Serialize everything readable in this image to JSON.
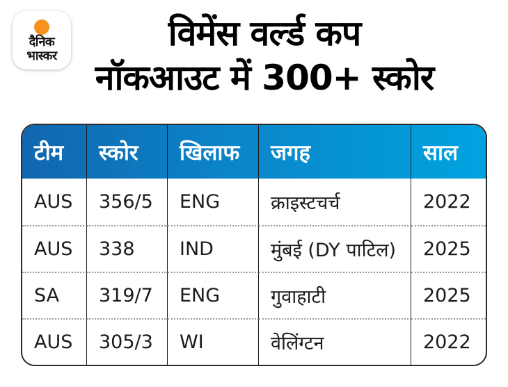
{
  "brand": {
    "logo_line1": "दैनिक",
    "logo_line2": "भास्कर",
    "logo_dot_color": "#f6921e"
  },
  "title": {
    "line1": "विमेंस वर्ल्ड कप",
    "line2": "नॉकआउट में 300+ स्कोर"
  },
  "colors": {
    "header_gradient_start": "#1166af",
    "header_gradient_end": "#00a3e0",
    "header_text": "#ffffff",
    "body_text": "#1b1b1b",
    "table_border": "#2b2b2b"
  },
  "chart_data": {
    "type": "table",
    "title": "विमेंस वर्ल्ड कप नॉकआउट में 300+ स्कोर",
    "columns": [
      "टीम",
      "स्कोर",
      "खिलाफ",
      "जगह",
      "साल"
    ],
    "rows": [
      [
        "AUS",
        "356/5",
        "ENG",
        "क्राइस्टचर्च",
        "2022"
      ],
      [
        "AUS",
        "338",
        "IND",
        "मुंबई (DY पाटिल)",
        "2025"
      ],
      [
        "SA",
        "319/7",
        "ENG",
        "गुवाहाटी",
        "2025"
      ],
      [
        "AUS",
        "305/3",
        "WI",
        "वेलिंग्टन",
        "2022"
      ]
    ]
  }
}
